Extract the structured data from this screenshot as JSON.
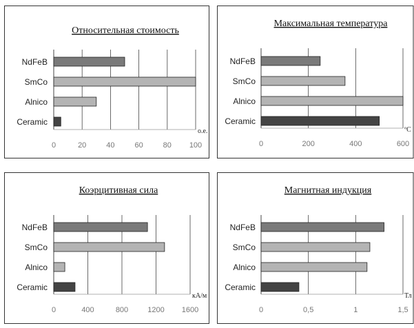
{
  "chart_data": [
    {
      "type": "bar",
      "title": "Относительная стоимость",
      "categories": [
        "NdFeB",
        "SmCo",
        "Alnico",
        "Ceramic"
      ],
      "values": [
        50,
        100,
        30,
        5
      ],
      "xlim": [
        0,
        100
      ],
      "xticks": [
        "0",
        "20",
        "40",
        "60",
        "80",
        "100"
      ],
      "unit": "о.е.",
      "grid": true
    },
    {
      "type": "bar",
      "title": "Максимальная температура",
      "categories": [
        "NdFeB",
        "SmCo",
        "Alnico",
        "Ceramic"
      ],
      "values": [
        250,
        355,
        600,
        500
      ],
      "xlim": [
        0,
        600
      ],
      "xticks": [
        "0",
        "200",
        "400",
        "600"
      ],
      "unit": "ºC",
      "grid": true
    },
    {
      "type": "bar",
      "title": "Коэрцитивная сила",
      "categories": [
        "NdFeB",
        "SmCo",
        "Alnico",
        "Ceramic"
      ],
      "values": [
        1100,
        1300,
        130,
        250
      ],
      "xlim": [
        0,
        1600
      ],
      "xticks": [
        "0",
        "400",
        "800",
        "1200",
        "1600"
      ],
      "unit": "кА/м",
      "grid": true
    },
    {
      "type": "bar",
      "title": "Магнитная индукция",
      "categories": [
        "NdFeB",
        "SmCo",
        "Alnico",
        "Ceramic"
      ],
      "values": [
        1.3,
        1.15,
        1.12,
        0.4
      ],
      "xlim": [
        0,
        1.5
      ],
      "xticks": [
        "0",
        "0,5",
        "1",
        "1,5"
      ],
      "unit": "Тл",
      "grid": true
    }
  ],
  "colors": {
    "NdFeB": "#7a7a7a",
    "SmCo": "#b4b4b4",
    "Alnico": "#b4b4b4",
    "Ceramic": "#444444",
    "frame": "#333333",
    "grid": "#444444"
  }
}
